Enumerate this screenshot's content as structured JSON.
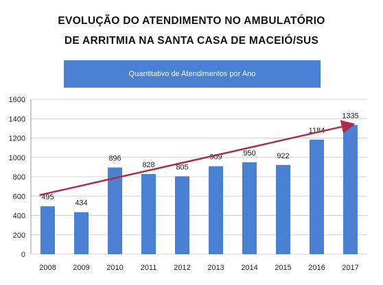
{
  "titles": {
    "line1": "EVOLUÇÃO DO ATENDIMENTO NO AMBULATÓRIO",
    "line2": "DE ARRITMIA NA SANTA CASA DE MACEIÓ/SUS"
  },
  "banner": {
    "text": "Quantitativo de Atendimentos por Ano"
  },
  "colors": {
    "bar": "#4a80d2",
    "banner": "#4a80d2",
    "trend": "#b02a4a",
    "grid": "#d0d0d0"
  },
  "chart_data": {
    "type": "bar",
    "title": "Quantitativo de Atendimentos por Ano",
    "categories": [
      "2008",
      "2009",
      "2010",
      "2011",
      "2012",
      "2013",
      "2014",
      "2015",
      "2016",
      "2017"
    ],
    "values": [
      495,
      434,
      896,
      828,
      805,
      909,
      950,
      922,
      1184,
      1335
    ],
    "ylim": [
      0,
      1600
    ],
    "yticks": [
      0,
      200,
      400,
      600,
      800,
      1000,
      1200,
      1400,
      1600
    ],
    "grid": true,
    "trendline": {
      "from": 610,
      "to": 1340
    }
  }
}
